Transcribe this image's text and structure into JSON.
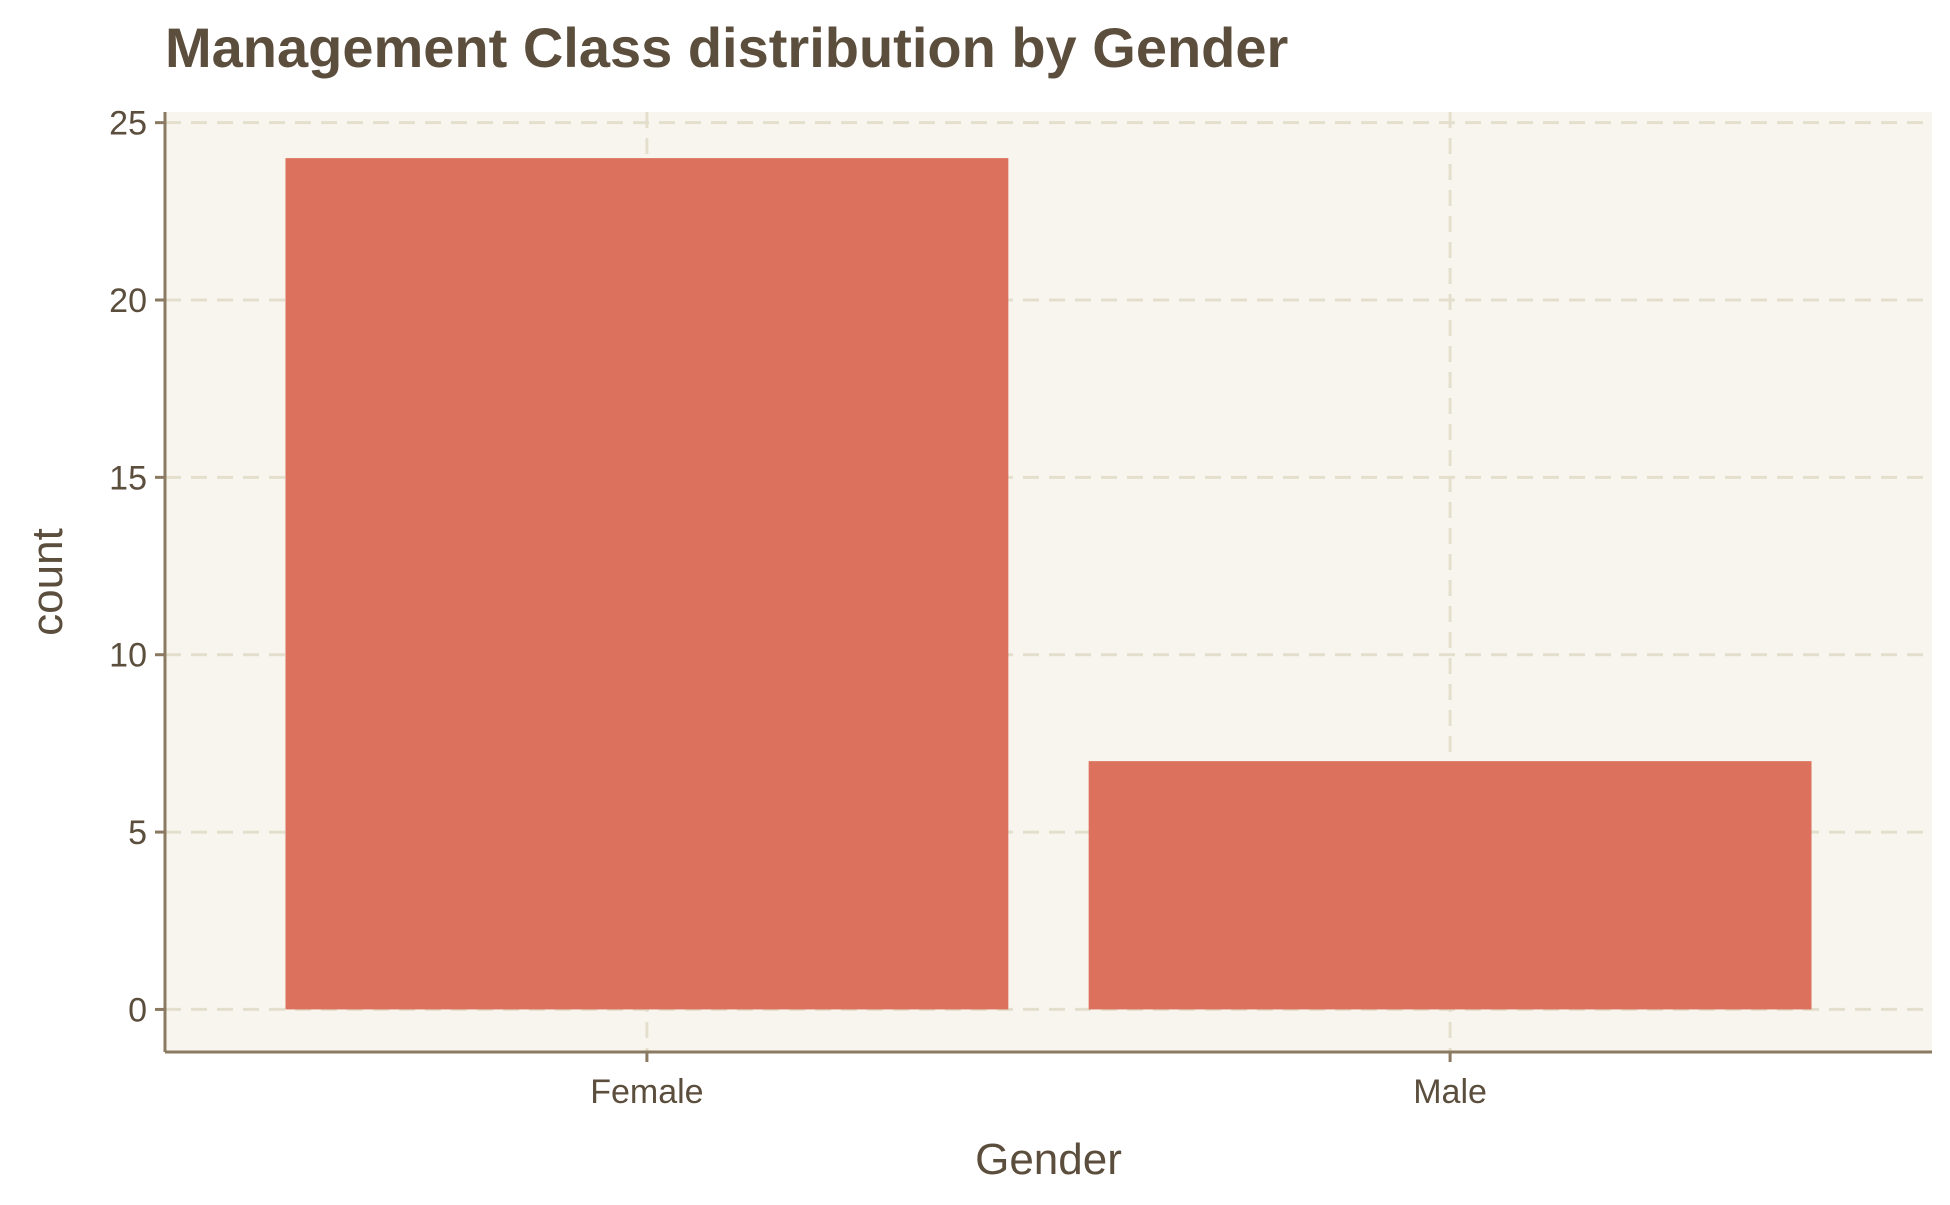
{
  "chart_data": {
    "type": "bar",
    "title": "Management Class distribution by Gender",
    "xlabel": "Gender",
    "ylabel": "count",
    "categories": [
      "Female",
      "Male"
    ],
    "values": [
      24,
      7
    ],
    "ylim": [
      -1.2,
      25.3
    ],
    "yticks": [
      0,
      5,
      10,
      15,
      20,
      25
    ],
    "grid": true,
    "grid_style": "dashed",
    "legend": "none",
    "colors": {
      "bar": "#dc725d",
      "panel_background": "#f8f5ef",
      "grid": "#e3dfcc",
      "axis": "#8b7a62",
      "text": "#5c4e3d"
    }
  }
}
